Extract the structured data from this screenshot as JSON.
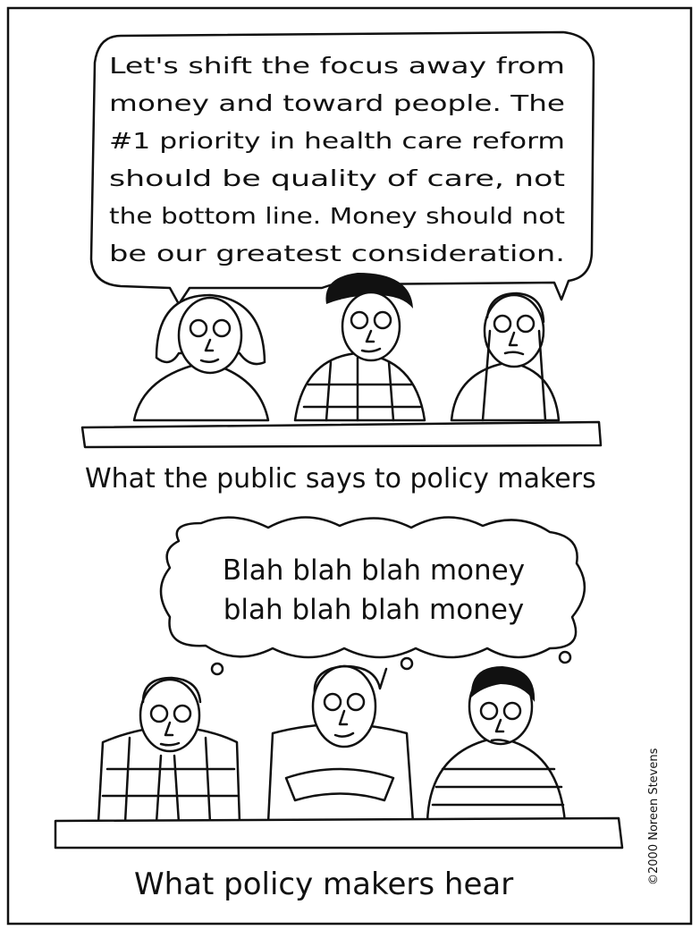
{
  "top_panel": {
    "speech_lines": [
      "Let's shift the focus away from",
      "money and toward people. The",
      "#1 priority in health care reform",
      "should be quality of care, not",
      "the bottom line. Money should not",
      "be our greatest consideration."
    ],
    "caption": "What the public says to policy makers"
  },
  "bottom_panel": {
    "thought_lines": [
      "Blah blah blah money",
      "blah blah blah money"
    ],
    "caption": "What policy makers hear"
  },
  "credit": "©2000 Noreen Stevens"
}
